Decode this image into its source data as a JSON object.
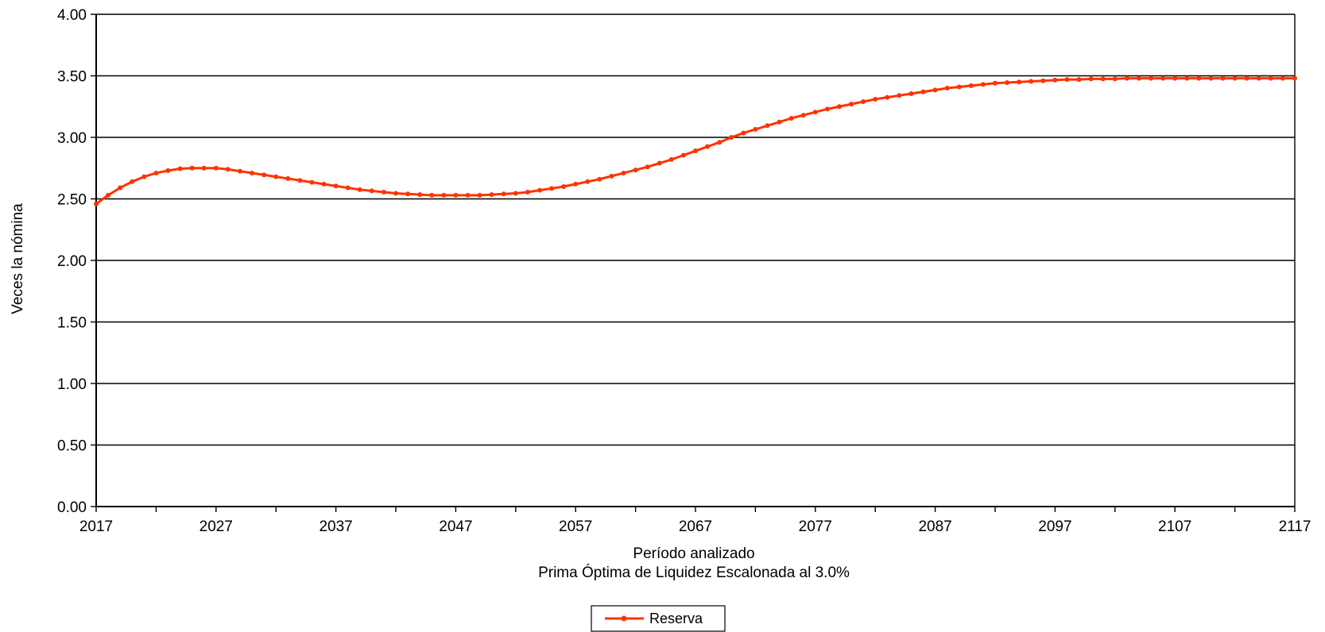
{
  "chart_data": {
    "type": "line",
    "xlabel": "Período analizado",
    "subtitle": "Prima Óptima de Liquidez Escalonada al 3.0%",
    "ylabel": "Veces la nómina",
    "xlim": [
      2017,
      2117
    ],
    "ylim": [
      0,
      4
    ],
    "x_tick_labels": [
      "2017",
      "2027",
      "2037",
      "2047",
      "2057",
      "2067",
      "2077",
      "2087",
      "2097",
      "2107",
      "2117"
    ],
    "y_tick_labels": [
      "0.00",
      "0.50",
      "1.00",
      "1.50",
      "2.00",
      "2.50",
      "3.00",
      "3.50",
      "4.00"
    ],
    "grid": "horizontal",
    "legend_position": "bottom-center",
    "series": [
      {
        "name": "Reserva",
        "color": "#ff3300",
        "x": [
          2017,
          2018,
          2019,
          2020,
          2021,
          2022,
          2023,
          2024,
          2025,
          2026,
          2027,
          2028,
          2029,
          2030,
          2031,
          2032,
          2033,
          2034,
          2035,
          2036,
          2037,
          2038,
          2039,
          2040,
          2041,
          2042,
          2043,
          2044,
          2045,
          2046,
          2047,
          2048,
          2049,
          2050,
          2051,
          2052,
          2053,
          2054,
          2055,
          2056,
          2057,
          2058,
          2059,
          2060,
          2061,
          2062,
          2063,
          2064,
          2065,
          2066,
          2067,
          2068,
          2069,
          2070,
          2071,
          2072,
          2073,
          2074,
          2075,
          2076,
          2077,
          2078,
          2079,
          2080,
          2081,
          2082,
          2083,
          2084,
          2085,
          2086,
          2087,
          2088,
          2089,
          2090,
          2091,
          2092,
          2093,
          2094,
          2095,
          2096,
          2097,
          2098,
          2099,
          2100,
          2101,
          2102,
          2103,
          2104,
          2105,
          2106,
          2107,
          2108,
          2109,
          2110,
          2111,
          2112,
          2113,
          2114,
          2115,
          2116,
          2117
        ],
        "values": [
          2.46,
          2.53,
          2.59,
          2.64,
          2.68,
          2.71,
          2.73,
          2.745,
          2.75,
          2.75,
          2.75,
          2.74,
          2.725,
          2.71,
          2.695,
          2.68,
          2.665,
          2.65,
          2.635,
          2.62,
          2.605,
          2.59,
          2.575,
          2.565,
          2.555,
          2.545,
          2.54,
          2.535,
          2.53,
          2.53,
          2.53,
          2.53,
          2.53,
          2.535,
          2.54,
          2.545,
          2.555,
          2.57,
          2.585,
          2.6,
          2.62,
          2.64,
          2.66,
          2.685,
          2.71,
          2.735,
          2.76,
          2.79,
          2.82,
          2.855,
          2.89,
          2.925,
          2.96,
          3.0,
          3.035,
          3.065,
          3.095,
          3.125,
          3.155,
          3.18,
          3.205,
          3.23,
          3.25,
          3.27,
          3.29,
          3.31,
          3.325,
          3.34,
          3.355,
          3.37,
          3.385,
          3.4,
          3.41,
          3.42,
          3.43,
          3.44,
          3.445,
          3.45,
          3.455,
          3.46,
          3.465,
          3.47,
          3.47,
          3.475,
          3.475,
          3.475,
          3.48,
          3.48,
          3.48,
          3.48,
          3.48,
          3.48,
          3.48,
          3.48,
          3.48,
          3.48,
          3.48,
          3.48,
          3.48,
          3.48,
          3.48
        ]
      }
    ]
  }
}
